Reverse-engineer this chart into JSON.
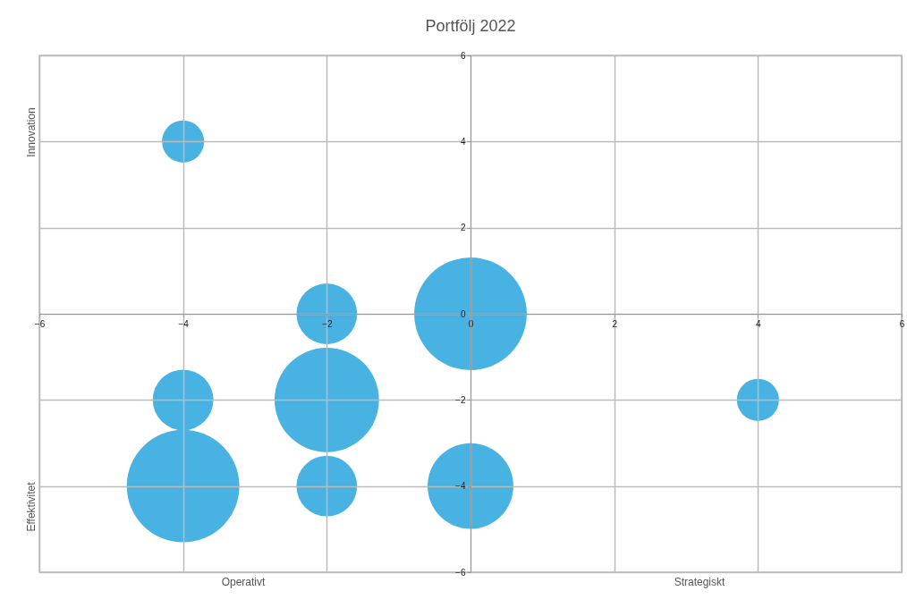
{
  "chart_data": {
    "type": "bubble",
    "title": "Portfölj 2022",
    "x": [
      -4,
      -2,
      0,
      -4,
      -2,
      4,
      -4,
      -2,
      0
    ],
    "series": [
      {
        "color": "#3eaee0",
        "values": [
          4,
          0,
          0,
          -2,
          -2,
          -2,
          -4,
          -4,
          -4
        ],
        "sizes": [
          0.14,
          0.29,
          1,
          0.29,
          0.86,
          0.14,
          1,
          0.29,
          0.58
        ]
      }
    ],
    "xlim": [
      -6,
      6
    ],
    "xticks": [
      -6,
      -4,
      -2,
      0,
      2,
      4,
      6
    ],
    "ylim": [
      -6,
      6
    ],
    "yticks": [
      -6,
      -4,
      -2,
      0,
      2,
      4,
      6
    ],
    "grid": true,
    "annotations": [
      "Operativt",
      "Strategiskt",
      "Innovation",
      "Effektivitet"
    ]
  }
}
